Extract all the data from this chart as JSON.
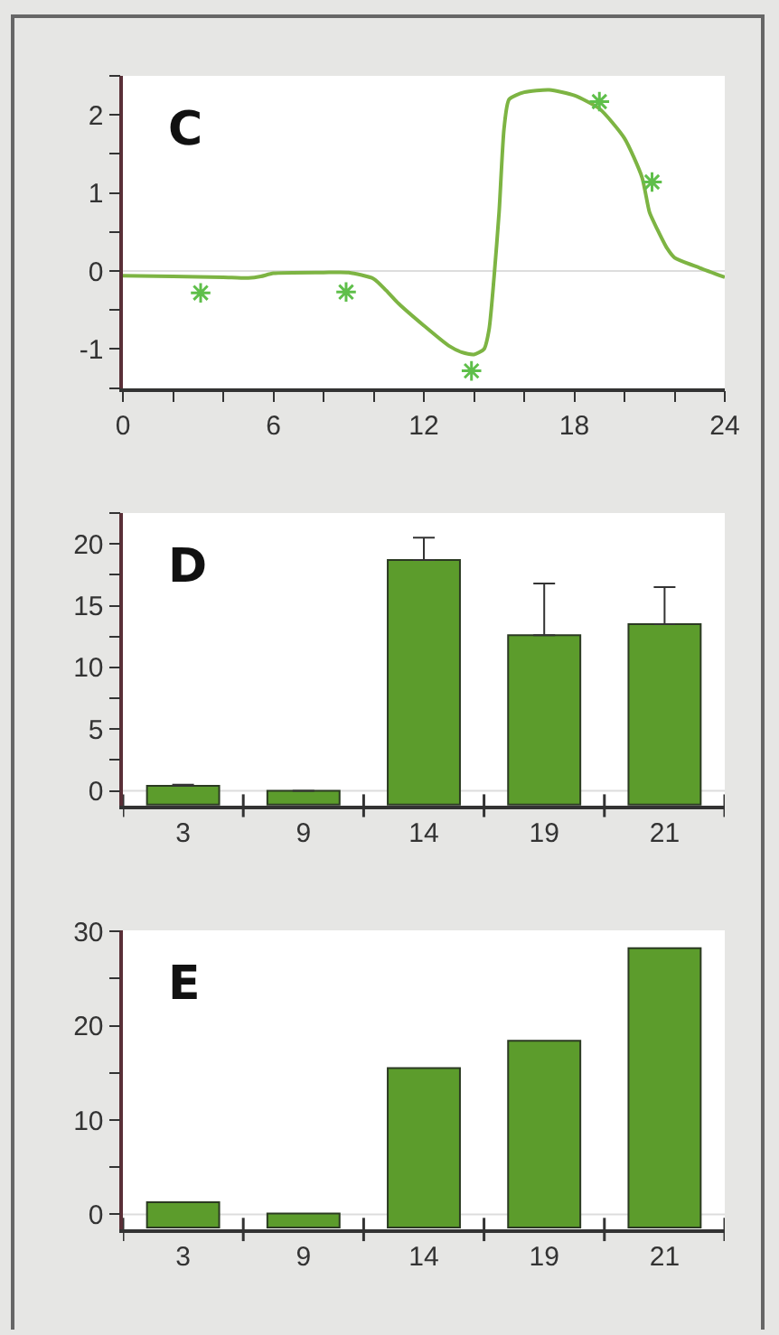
{
  "chart_data": [
    {
      "type": "line",
      "annotations": [
        "C"
      ],
      "series": [
        {
          "color": "#7db443",
          "marker": "none",
          "x": [
            0,
            2,
            4,
            5,
            5.5,
            6,
            8,
            9,
            10,
            10.5,
            11,
            12,
            13,
            13.5,
            14,
            14.4,
            14.6,
            14.8,
            15,
            15.2,
            15.4,
            16,
            17,
            18,
            19,
            20,
            20.7,
            21,
            21.3,
            21.7,
            22,
            23,
            24
          ],
          "values": [
            -0.06,
            -0.07,
            -0.08,
            -0.09,
            -0.07,
            -0.03,
            -0.02,
            -0.02,
            -0.1,
            -0.25,
            -0.42,
            -0.7,
            -0.96,
            -1.04,
            -1.07,
            -1.0,
            -0.75,
            -0.08,
            0.75,
            1.83,
            2.2,
            2.29,
            2.32,
            2.25,
            2.08,
            1.7,
            1.2,
            0.75,
            0.54,
            0.29,
            0.17,
            0.04,
            -0.08
          ]
        },
        {
          "type": "scatter",
          "color": "#5fbf4a",
          "marker": "cross",
          "x": [
            3.1,
            8.9,
            13.9,
            19.0,
            21.1
          ],
          "values": [
            -0.28,
            -0.27,
            -1.28,
            2.17,
            1.14
          ]
        }
      ],
      "xlim": [
        0,
        24
      ],
      "xticks": [
        0,
        {
          "value": 2,
          "label": null
        },
        {
          "value": 4,
          "label": null
        },
        6,
        {
          "value": 8,
          "label": null
        },
        {
          "value": 10,
          "label": null
        },
        12,
        {
          "value": 14,
          "label": null
        },
        {
          "value": 16,
          "label": null
        },
        18,
        {
          "value": 20,
          "label": null
        },
        {
          "value": 22,
          "label": null
        },
        24
      ],
      "ylim": [
        -1.5,
        2.5
      ],
      "yticks": [
        {
          "value": -1.5,
          "label": null
        },
        -1,
        {
          "value": -0.5,
          "label": null
        },
        0,
        {
          "value": 0.5,
          "label": null
        },
        1,
        {
          "value": 1.5,
          "label": null
        },
        2,
        {
          "value": 2.5,
          "label": null
        }
      ],
      "ref_lines": [
        {
          "axis": "y",
          "value": 0,
          "color": "#dddddd"
        }
      ]
    },
    {
      "type": "bar",
      "annotations": [
        "D"
      ],
      "categories": [
        "3",
        "9",
        "14",
        "19",
        "21"
      ],
      "base": [
        -1.1,
        -1.1,
        -1.1,
        -1.1,
        -1.1
      ],
      "values": [
        1.5,
        1.1,
        19.8,
        13.7,
        14.6
      ],
      "color": "#5c9c2c",
      "errors": [
        [
          0.4,
          0.5
        ],
        null,
        [
          18.7,
          20.5
        ],
        [
          12.6,
          16.8
        ],
        [
          13.5,
          16.5
        ]
      ],
      "ylim": [
        -1.2,
        22.5
      ],
      "yticks": [
        0,
        {
          "value": 2.5,
          "label": null
        },
        5,
        {
          "value": 7.5,
          "label": null
        },
        10,
        {
          "value": 12.5,
          "label": null
        },
        15,
        {
          "value": 17.5,
          "label": null
        },
        20,
        {
          "value": 22.5,
          "label": null
        }
      ],
      "ref_lines": [
        {
          "axis": "y",
          "value": 0,
          "color": "#dddddd"
        }
      ]
    },
    {
      "type": "bar",
      "annotations": [
        "E"
      ],
      "categories": [
        "3",
        "9",
        "14",
        "19",
        "21"
      ],
      "base": [
        -1.4,
        -1.4,
        -1.4,
        -1.4,
        -1.4
      ],
      "values": [
        2.7,
        1.5,
        16.9,
        19.8,
        29.6
      ],
      "color": "#5c9c2c",
      "ylim": [
        -1.6,
        30.1
      ],
      "yticks": [
        0,
        {
          "value": 5,
          "label": null
        },
        10,
        {
          "value": 15,
          "label": null
        },
        20,
        {
          "value": 25,
          "label": null
        },
        30
      ],
      "ref_lines": [
        {
          "axis": "y",
          "value": 0,
          "color": "#dddddd"
        }
      ]
    }
  ]
}
